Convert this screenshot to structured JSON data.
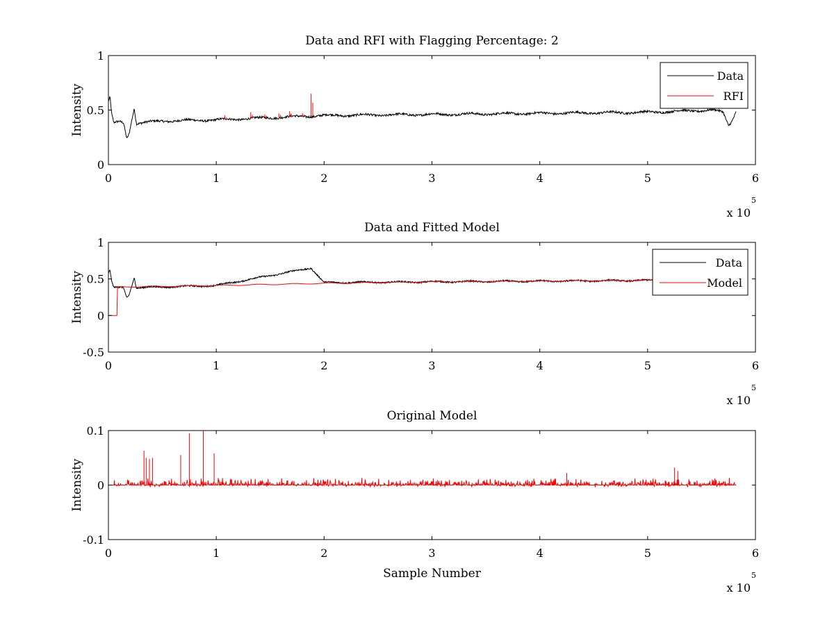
{
  "chart_data": [
    {
      "type": "line",
      "title": "Data and RFI with Flagging Percentage: 2",
      "xlabel": "",
      "ylabel": "Intensity",
      "xlim": [
        0,
        600000
      ],
      "ylim": [
        0,
        1
      ],
      "x_ticks": [
        "0",
        "1",
        "2",
        "3",
        "4",
        "5",
        "6"
      ],
      "y_ticks": [
        "0",
        "0.5",
        "1"
      ],
      "x_multiplier": "x 10",
      "x_multiplier_exponent": "5",
      "grid": false,
      "legend_position": "top-right",
      "series": [
        {
          "name": "Data",
          "color": "#000000",
          "points": [
            [
              0,
              0.58
            ],
            [
              1500,
              0.62
            ],
            [
              3000,
              0.46
            ],
            [
              5000,
              0.38
            ],
            [
              10000,
              0.39
            ],
            [
              14000,
              0.38
            ],
            [
              17000,
              0.24
            ],
            [
              19000,
              0.28
            ],
            [
              22000,
              0.43
            ],
            [
              24000,
              0.52
            ],
            [
              26000,
              0.38
            ],
            [
              50000,
              0.4
            ],
            [
              100000,
              0.41
            ],
            [
              150000,
              0.43
            ],
            [
              200000,
              0.45
            ],
            [
              300000,
              0.46
            ],
            [
              400000,
              0.47
            ],
            [
              500000,
              0.48
            ],
            [
              560000,
              0.5
            ],
            [
              570000,
              0.48
            ],
            [
              575000,
              0.36
            ],
            [
              578000,
              0.4
            ],
            [
              582000,
              0.49
            ]
          ]
        },
        {
          "name": "RFI",
          "color": "#ff0000",
          "points": [
            [
              108000,
              0.45
            ],
            [
              132000,
              0.48
            ],
            [
              145000,
              0.46
            ],
            [
              158000,
              0.47
            ],
            [
              168000,
              0.49
            ],
            [
              180000,
              0.47
            ],
            [
              188000,
              0.65
            ],
            [
              520000,
              0.48
            ]
          ]
        }
      ]
    },
    {
      "type": "line",
      "title": "Data and Fitted Model",
      "xlabel": "",
      "ylabel": "Intensity",
      "xlim": [
        0,
        600000
      ],
      "ylim": [
        -0.5,
        1
      ],
      "x_ticks": [
        "0",
        "1",
        "2",
        "3",
        "4",
        "5",
        "6"
      ],
      "y_ticks": [
        "-0.5",
        "0",
        "0.5",
        "1"
      ],
      "x_multiplier": "x 10",
      "x_multiplier_exponent": "5",
      "grid": false,
      "legend_position": "top-right",
      "series": [
        {
          "name": "Data",
          "color": "#000000",
          "points": [
            [
              0,
              0.58
            ],
            [
              1500,
              0.62
            ],
            [
              3000,
              0.46
            ],
            [
              5000,
              0.38
            ],
            [
              14000,
              0.38
            ],
            [
              17000,
              0.24
            ],
            [
              19000,
              0.28
            ],
            [
              24000,
              0.52
            ],
            [
              26000,
              0.38
            ],
            [
              100000,
              0.41
            ],
            [
              188000,
              0.65
            ],
            [
              200000,
              0.45
            ],
            [
              300000,
              0.46
            ],
            [
              400000,
              0.47
            ],
            [
              500000,
              0.48
            ],
            [
              505000,
              0.48
            ]
          ]
        },
        {
          "name": "Model",
          "color": "#ff0000",
          "points": [
            [
              0,
              0
            ],
            [
              8000,
              0
            ],
            [
              8000,
              0.39
            ],
            [
              100000,
              0.41
            ],
            [
              200000,
              0.44
            ],
            [
              300000,
              0.46
            ],
            [
              400000,
              0.47
            ],
            [
              500000,
              0.48
            ],
            [
              505000,
              0.48
            ]
          ]
        }
      ]
    },
    {
      "type": "line",
      "title": "Original Model",
      "xlabel": "Sample Number",
      "ylabel": "Intensity",
      "xlim": [
        0,
        600000
      ],
      "ylim": [
        -0.1,
        0.1
      ],
      "x_ticks": [
        "0",
        "1",
        "2",
        "3",
        "4",
        "5",
        "6"
      ],
      "y_ticks": [
        "-0.1",
        "0",
        "0.1"
      ],
      "x_multiplier": "x 10",
      "x_multiplier_exponent": "5",
      "grid": false,
      "legend_position": "none",
      "series": [
        {
          "color": "#ff0000",
          "spikes": [
            [
              33000,
              0.063
            ],
            [
              35000,
              0.05
            ],
            [
              38000,
              0.048
            ],
            [
              41000,
              0.05
            ],
            [
              67000,
              0.055
            ],
            [
              75000,
              0.095
            ],
            [
              88000,
              0.1
            ],
            [
              98000,
              0.058
            ],
            [
              425000,
              0.022
            ],
            [
              525000,
              0.032
            ],
            [
              528000,
              0.026
            ]
          ],
          "baseline": 0,
          "x_end": 582000
        }
      ]
    }
  ]
}
